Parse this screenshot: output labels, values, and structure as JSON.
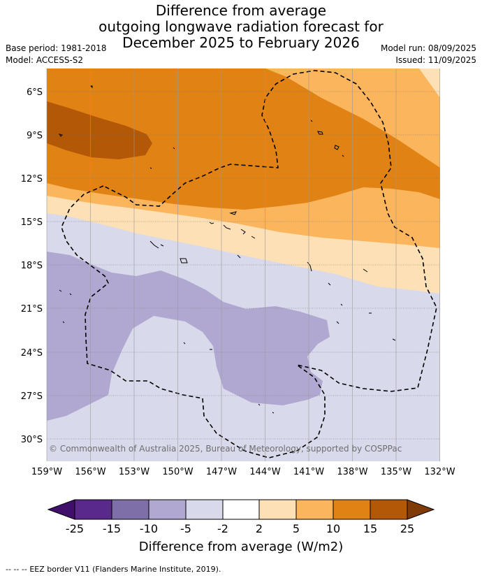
{
  "title": {
    "line1": "Difference from average",
    "line2": "outgoing longwave radiation forecast for",
    "line3": "December 2025 to February 2026"
  },
  "meta": {
    "base_period": "Base period: 1981-2018",
    "model": "Model: ACCESS-S2",
    "model_run": "Model run: 08/09/2025",
    "issued": "Issued: 11/09/2025"
  },
  "map": {
    "lat_labels": [
      "6°S",
      "9°S",
      "12°S",
      "15°S",
      "18°S",
      "21°S",
      "24°S",
      "27°S",
      "30°S"
    ],
    "lon_labels": [
      "159°W",
      "156°W",
      "153°W",
      "150°W",
      "147°W",
      "144°W",
      "141°W",
      "138°W",
      "135°W",
      "132°W"
    ],
    "copyright": "© Commonwealth of Australia 2025, Bureau of Meteorology, supported by COSPPac"
  },
  "colorbar": {
    "ticks": [
      "-25",
      "-15",
      "-10",
      "-5",
      "-2",
      "2",
      "5",
      "10",
      "15",
      "25"
    ],
    "colors": [
      "#3f0f6b",
      "#5a2a8a",
      "#7f6fa9",
      "#b0a8d1",
      "#d8d9ea",
      "#ffffff",
      "#fde0b5",
      "#fbb55c",
      "#e08214",
      "#b35806",
      "#7f3b08"
    ],
    "label": "Difference from average (W/m2)"
  },
  "footer": {
    "legend_symbol": "-- -- --",
    "legend_text": "EEZ border V11 (Flanders Marine Institute, 2019)."
  }
}
